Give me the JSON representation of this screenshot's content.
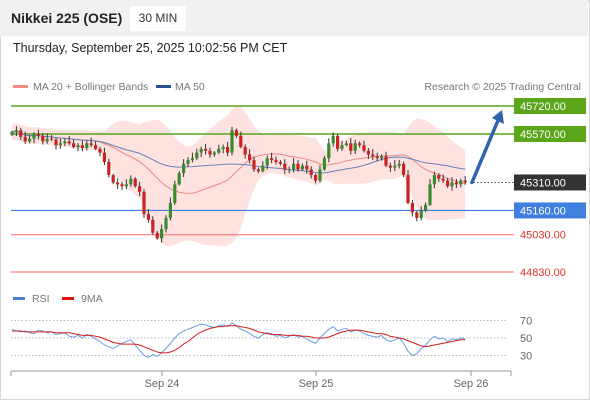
{
  "header": {
    "title": "Nikkei 225 (OSE)",
    "timeframe": "30 MIN"
  },
  "datetime": "Thursday, September 25, 2025 10:02:56 PM CET",
  "legend": {
    "ma20_bb": "MA 20 + Bollinger Bands",
    "ma50": "MA 50",
    "credit": "Research © 2025 Trading Central",
    "rsi": "RSI",
    "rsi_ma": "9MA"
  },
  "colors": {
    "resistance": "#5aa51a",
    "support": "#3f7fe0",
    "bearish_target": "#ff6b6b",
    "candle_up": "#3a8a2e",
    "candle_down": "#cc2222",
    "bollinger_fill": "#fde2e0",
    "ma20": "#e88a84",
    "ma50": "#6a7fb8",
    "arrow": "#2e65ad",
    "rsi": "#6a9fe0",
    "rsi_ma": "#d42020",
    "current_price": "#333333"
  },
  "chart_data": [
    {
      "type": "candlestick",
      "title": "Nikkei 225 (OSE)",
      "x_ticks": [
        "Sep 24",
        "Sep 25",
        "Sep 26"
      ],
      "ylim": [
        44800,
        45780
      ],
      "levels": [
        {
          "label": "45720.00",
          "value": 45720,
          "kind": "resistance"
        },
        {
          "label": "45570.00",
          "value": 45570,
          "kind": "resistance"
        },
        {
          "label": "45310.00",
          "value": 45310,
          "kind": "current"
        },
        {
          "label": "45160.00",
          "value": 45160,
          "kind": "support"
        },
        {
          "label": "45030.00",
          "value": 45030,
          "kind": "target"
        },
        {
          "label": "44830.00",
          "value": 44830,
          "kind": "target"
        }
      ],
      "close": [
        45580,
        45590,
        45555,
        45530,
        45545,
        45570,
        45560,
        45530,
        45545,
        45540,
        45510,
        45520,
        45530,
        45520,
        45500,
        45510,
        45495,
        45520,
        45510,
        45490,
        45470,
        45420,
        45350,
        45310,
        45300,
        45290,
        45300,
        45330,
        45290,
        45260,
        45140,
        45110,
        45040,
        45010,
        45060,
        45120,
        45200,
        45300,
        45360,
        45410,
        45430,
        45440,
        45470,
        45490,
        45480,
        45460,
        45470,
        45490,
        45500,
        45470,
        45590,
        45560,
        45500,
        45460,
        45430,
        45380,
        45370,
        45400,
        45440,
        45430,
        45420,
        45410,
        45380,
        45380,
        45410,
        45380,
        45400,
        45380,
        45350,
        45320,
        45380,
        45440,
        45520,
        45560,
        45490,
        45510,
        45520,
        45480,
        45520,
        45510,
        45480,
        45460,
        45450,
        45440,
        45450,
        45400,
        45390,
        45400,
        45410,
        45350,
        45200,
        45150,
        45120,
        45160,
        45190,
        45300,
        45350,
        45330,
        45320,
        45290,
        45310,
        45300,
        45320,
        45310
      ],
      "rsi": {
        "ylim": [
          0,
          100
        ],
        "ticks": [
          "70",
          "50",
          "30"
        ],
        "rsi": [
          60,
          58,
          57,
          58,
          56,
          55,
          59,
          58,
          56,
          57,
          54,
          55,
          56,
          52,
          51,
          53,
          50,
          54,
          52,
          49,
          46,
          42,
          40,
          38,
          41,
          44,
          46,
          48,
          42,
          36,
          30,
          28,
          31,
          29,
          33,
          38,
          44,
          50,
          55,
          58,
          60,
          62,
          64,
          66,
          65,
          63,
          62,
          64,
          65,
          63,
          67,
          64,
          60,
          58,
          55,
          52,
          50,
          54,
          56,
          55,
          52,
          53,
          50,
          52,
          54,
          51,
          52,
          49,
          46,
          44,
          50,
          55,
          60,
          63,
          58,
          60,
          61,
          57,
          59,
          58,
          55,
          53,
          52,
          51,
          53,
          48,
          46,
          48,
          50,
          44,
          35,
          30,
          32,
          38,
          42,
          48,
          52,
          49,
          50,
          46,
          49,
          48,
          50,
          49
        ],
        "ma9": [
          58,
          58,
          58,
          57,
          57,
          57,
          57,
          57,
          57,
          57,
          56,
          56,
          56,
          56,
          55,
          54,
          53,
          53,
          53,
          52,
          51,
          49,
          47,
          45,
          44,
          43,
          43,
          43,
          43,
          42,
          40,
          38,
          36,
          34,
          33,
          33,
          34,
          36,
          39,
          43,
          46,
          50,
          54,
          57,
          59,
          61,
          62,
          63,
          63,
          64,
          64,
          64,
          63,
          62,
          61,
          59,
          57,
          56,
          55,
          54,
          54,
          54,
          53,
          53,
          53,
          53,
          52,
          52,
          51,
          50,
          50,
          50,
          51,
          53,
          55,
          57,
          58,
          59,
          59,
          59,
          58,
          57,
          56,
          55,
          55,
          54,
          52,
          51,
          50,
          49,
          47,
          45,
          43,
          41,
          40,
          41,
          42,
          43,
          44,
          45,
          46,
          47,
          48,
          48
        ]
      }
    }
  ]
}
